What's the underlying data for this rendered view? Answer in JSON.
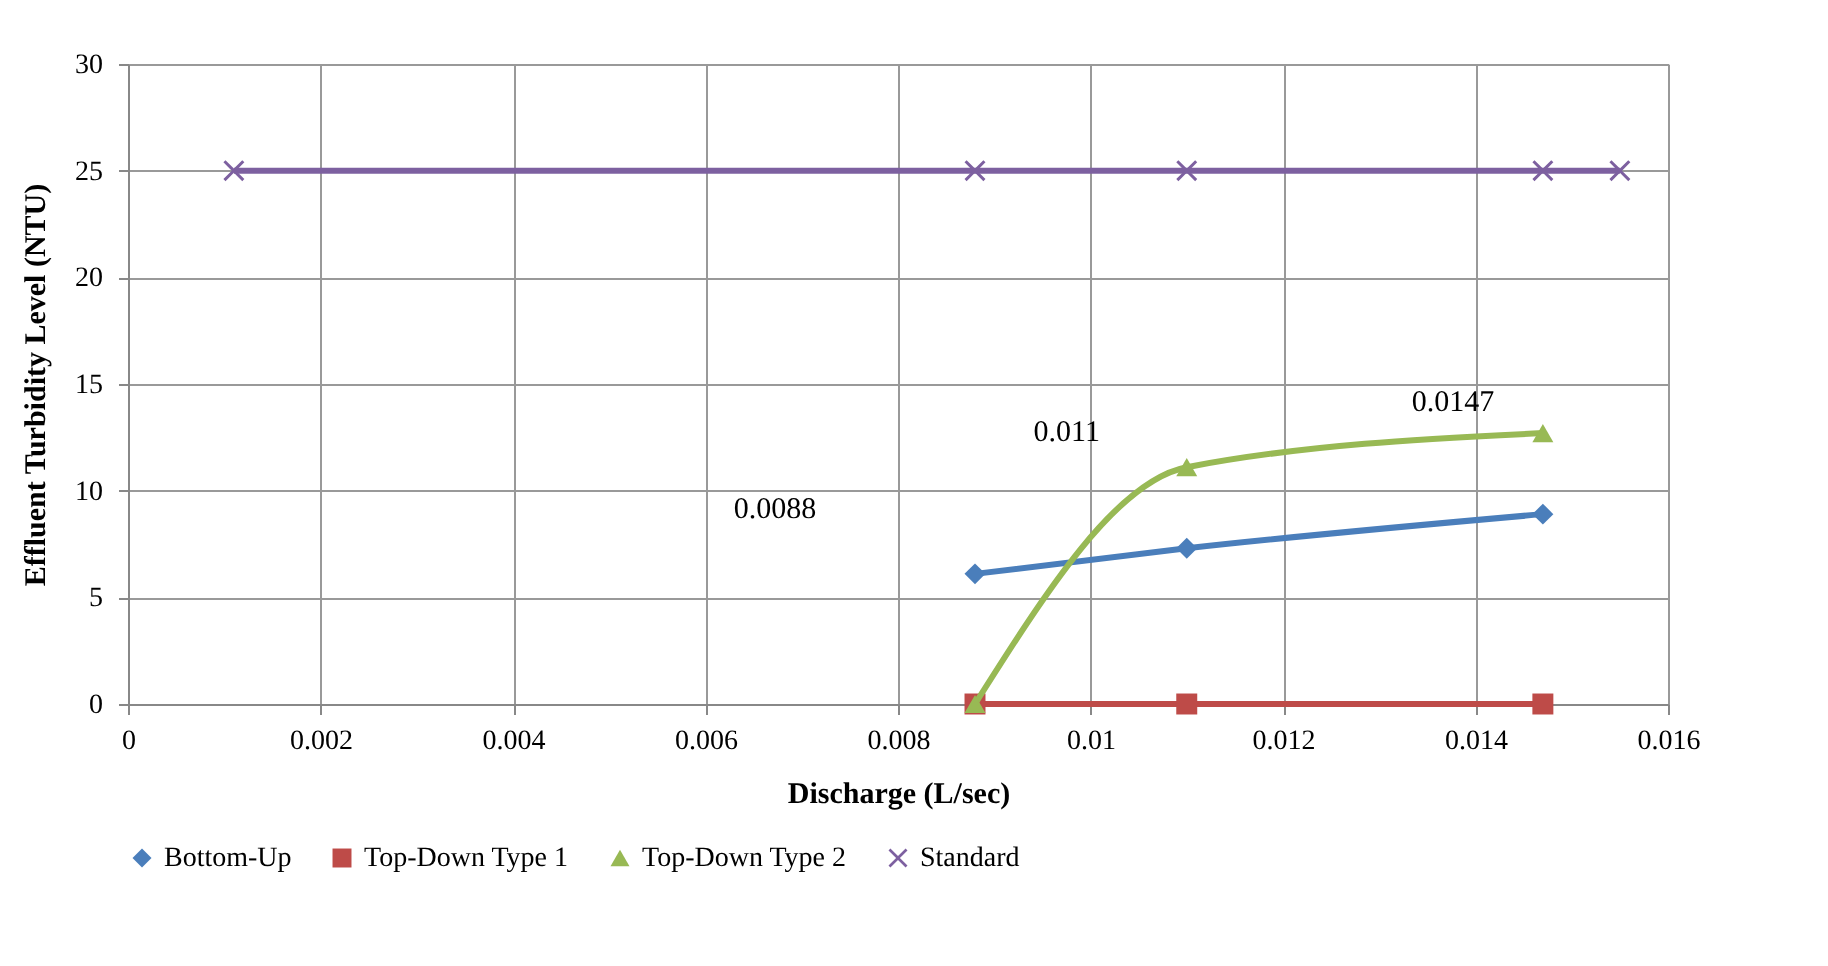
{
  "chart_data": {
    "type": "line",
    "xlabel": "Discharge (L/sec)",
    "ylabel": "Effluent  Turbidity  Level (NTU)",
    "xlim": [
      0,
      0.016
    ],
    "xticks": [
      0,
      0.002,
      0.004,
      0.006,
      0.008,
      0.01,
      0.012,
      0.014,
      0.016
    ],
    "ylim": [
      0,
      30
    ],
    "yticks": [
      0,
      5,
      10,
      15,
      20,
      25,
      30
    ],
    "grid": true,
    "legend": "bottom",
    "series": [
      {
        "name": "Bottom-Up",
        "color": "#4a7ebb",
        "marker": "diamond",
        "x": [
          0.0088,
          0.011,
          0.0147
        ],
        "values": [
          6.1,
          7.3,
          8.9
        ]
      },
      {
        "name": "Top-Down Type 1",
        "color": "#be4b48",
        "marker": "square",
        "x": [
          0.0088,
          0.011,
          0.0147
        ],
        "values": [
          0,
          0,
          0
        ]
      },
      {
        "name": "Top-Down Type 2",
        "color": "#98b954",
        "marker": "triangle",
        "x": [
          0.0088,
          0.011,
          0.0147
        ],
        "values": [
          0,
          11.1,
          12.7
        ]
      },
      {
        "name": "Standard",
        "color": "#7d60a0",
        "marker": "cross",
        "x": [
          0.0011,
          0.0088,
          0.011,
          0.0147,
          0.0155
        ],
        "values": [
          25,
          25,
          25,
          25,
          25
        ]
      }
    ],
    "annotations": [
      "0.0088",
      "0.011",
      "0.0147"
    ]
  }
}
